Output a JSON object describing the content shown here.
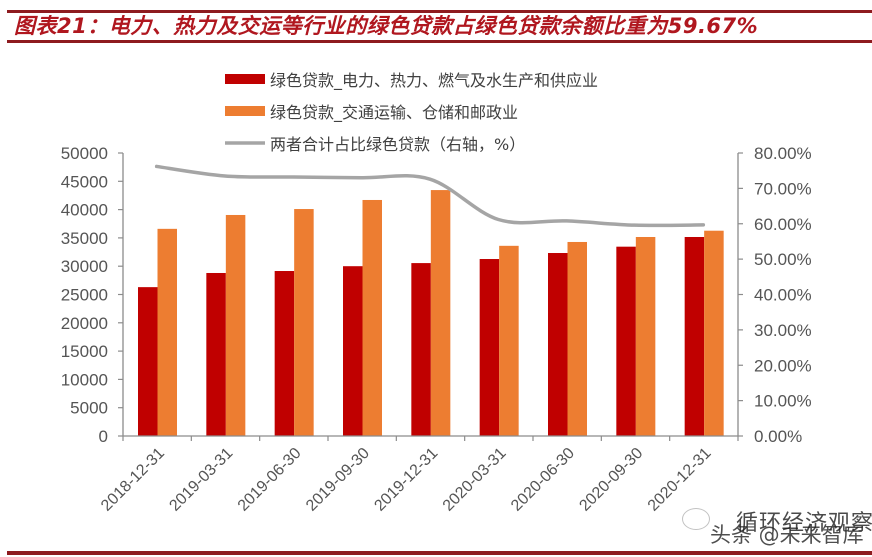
{
  "header": {
    "title": "图表21：电力、热力及交运等行业的绿色贷款占绿色贷款余额比重为59.67%"
  },
  "watermark": {
    "line1": "循环经济观察",
    "line2": "头条 @未来智库",
    "icon": "wechat-icon"
  },
  "colors": {
    "series_red": "#C00000",
    "series_orange": "#ED7D31",
    "series_line": "#A5A5A5",
    "title": "#B0171F",
    "rule": "#8E1B1F",
    "axis": "#8C8C8C"
  },
  "chart_data": {
    "type": "bar",
    "title": "图表21：电力、热力及交运等行业的绿色贷款占绿色贷款余额比重为59.67%",
    "categories": [
      "2018-12-31",
      "2019-03-31",
      "2019-06-30",
      "2019-09-30",
      "2019-12-31",
      "2020-03-31",
      "2020-06-30",
      "2020-09-30",
      "2020-12-31"
    ],
    "series": [
      {
        "name": "绿色贷款_电力、热力、燃气及水生产和供应业",
        "type": "bar",
        "axis": "left",
        "color": "#C00000",
        "values": [
          26300,
          28800,
          29150,
          30000,
          30550,
          31270,
          32330,
          33450,
          35160
        ]
      },
      {
        "name": "绿色贷款_交通运输、仓储和邮政业",
        "type": "bar",
        "axis": "left",
        "color": "#ED7D31",
        "values": [
          36600,
          39050,
          40100,
          41700,
          43450,
          33600,
          34280,
          35160,
          36270
        ]
      },
      {
        "name": "两者合计占比绿色贷款（右轴，%）",
        "type": "line",
        "axis": "right",
        "color": "#A5A5A5",
        "values": [
          76.2,
          73.5,
          73.2,
          73.0,
          72.6,
          61.2,
          60.8,
          59.6,
          59.67
        ]
      }
    ],
    "xlabel": "",
    "ylabel": "",
    "ylim": [
      0,
      50000
    ],
    "y_ticks": [
      "0",
      "5000",
      "10000",
      "15000",
      "20000",
      "25000",
      "30000",
      "35000",
      "40000",
      "45000",
      "50000"
    ],
    "y2lim": [
      0,
      80
    ],
    "y2_ticks": [
      "0.00%",
      "10.00%",
      "20.00%",
      "30.00%",
      "40.00%",
      "50.00%",
      "60.00%",
      "70.00%",
      "80.00%"
    ],
    "grid": false,
    "legend_position": "top"
  }
}
